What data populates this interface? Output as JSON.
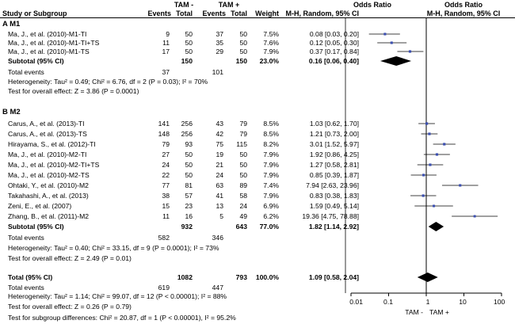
{
  "header": {
    "group1": "TAM -",
    "group2": "TAM +",
    "or_mid": "Odds Ratio",
    "or_right": "Odds Ratio",
    "study": "Study or Subgroup",
    "events1": "Events",
    "total1": "Total",
    "events2": "Events",
    "total2": "Total",
    "weight": "Weight",
    "method_mid": "M-H, Random, 95% CI",
    "method_right": "M-H, Random, 95% CI"
  },
  "chart_data": {
    "type": "forest",
    "axis": {
      "scale": "log",
      "ticks": [
        "0.01",
        "0.1",
        "1",
        "10",
        "100"
      ],
      "tick_values": [
        0.01,
        0.1,
        1,
        10,
        100
      ],
      "left_label": "TAM -",
      "right_label": "TAM +",
      "xlim": [
        0.01,
        100
      ]
    },
    "subgroups": [
      {
        "title": "A  M1",
        "studies": [
          {
            "name": "Ma, J., et al. (2010)-M1-TI",
            "e1": "9",
            "t1": "50",
            "e2": "37",
            "t2": "50",
            "weight": "7.5%",
            "or_text": "0.08 [0.03, 0.20]",
            "or": 0.08,
            "lo": 0.03,
            "hi": 0.2
          },
          {
            "name": "Ma, J., et al. (2010)-M1-TI+TS",
            "e1": "11",
            "t1": "50",
            "e2": "35",
            "t2": "50",
            "weight": "7.6%",
            "or_text": "0.12 [0.05, 0.30]",
            "or": 0.12,
            "lo": 0.05,
            "hi": 0.3
          },
          {
            "name": "Ma, J., et al. (2010)-M1-TS",
            "e1": "17",
            "t1": "50",
            "e2": "29",
            "t2": "50",
            "weight": "7.9%",
            "or_text": "0.37 [0.17, 0.84]",
            "or": 0.37,
            "lo": 0.17,
            "hi": 0.84
          }
        ],
        "subtotal": {
          "label": "Subtotal (95% CI)",
          "t1": "150",
          "t2": "150",
          "weight": "23.0%",
          "or_text": "0.16 [0.06, 0.40]",
          "or": 0.16,
          "lo": 0.06,
          "hi": 0.4
        },
        "total_events": {
          "label": "Total events",
          "e1": "37",
          "e2": "101"
        },
        "heterogeneity": "Heterogeneity: Tau² = 0.49; Chi² = 6.76, df = 2 (P = 0.03); I² = 70%",
        "overall": "Test for overall effect: Z = 3.86 (P = 0.0001)"
      },
      {
        "title": "B  M2",
        "studies": [
          {
            "name": "Carus, A., et al. (2013)-TI",
            "e1": "141",
            "t1": "256",
            "e2": "43",
            "t2": "79",
            "weight": "8.5%",
            "or_text": "1.03 [0.62, 1.70]",
            "or": 1.03,
            "lo": 0.62,
            "hi": 1.7
          },
          {
            "name": "Carus, A., et al. (2013)-TS",
            "e1": "148",
            "t1": "256",
            "e2": "42",
            "t2": "79",
            "weight": "8.5%",
            "or_text": "1.21 [0.73, 2.00]",
            "or": 1.21,
            "lo": 0.73,
            "hi": 2.0
          },
          {
            "name": "Hirayama, S., et al. (2012)-TI",
            "e1": "79",
            "t1": "93",
            "e2": "75",
            "t2": "115",
            "weight": "8.2%",
            "or_text": "3.01 [1.52, 5.97]",
            "or": 3.01,
            "lo": 1.52,
            "hi": 5.97
          },
          {
            "name": "Ma, J., et al. (2010)-M2-TI",
            "e1": "27",
            "t1": "50",
            "e2": "19",
            "t2": "50",
            "weight": "7.9%",
            "or_text": "1.92 [0.86, 4.25]",
            "or": 1.92,
            "lo": 0.86,
            "hi": 4.25
          },
          {
            "name": "Ma, J., et al. (2010)-M2-TI+TS",
            "e1": "24",
            "t1": "50",
            "e2": "21",
            "t2": "50",
            "weight": "7.9%",
            "or_text": "1.27 [0.58, 2.81]",
            "or": 1.27,
            "lo": 0.58,
            "hi": 2.81
          },
          {
            "name": "Ma, J., et al. (2010)-M2-TS",
            "e1": "22",
            "t1": "50",
            "e2": "24",
            "t2": "50",
            "weight": "7.9%",
            "or_text": "0.85 [0.39, 1.87]",
            "or": 0.85,
            "lo": 0.39,
            "hi": 1.87
          },
          {
            "name": "Ohtaki, Y., et al. (2010)-M2",
            "e1": "77",
            "t1": "81",
            "e2": "63",
            "t2": "89",
            "weight": "7.4%",
            "or_text": "7.94 [2.63, 23.96]",
            "or": 7.94,
            "lo": 2.63,
            "hi": 23.96
          },
          {
            "name": "Takahashi, A., et al. (2013)",
            "e1": "38",
            "t1": "57",
            "e2": "41",
            "t2": "58",
            "weight": "7.9%",
            "or_text": "0.83 [0.38, 1.83]",
            "or": 0.83,
            "lo": 0.38,
            "hi": 1.83
          },
          {
            "name": "Zeni, E., et al. (2007)",
            "e1": "15",
            "t1": "23",
            "e2": "13",
            "t2": "24",
            "weight": "6.9%",
            "or_text": "1.59 [0.49, 5.14]",
            "or": 1.59,
            "lo": 0.49,
            "hi": 5.14
          },
          {
            "name": "Zhang, B., et al. (2011)-M2",
            "e1": "11",
            "t1": "16",
            "e2": "5",
            "t2": "49",
            "weight": "6.2%",
            "or_text": "19.36 [4.75, 78.88]",
            "or": 19.36,
            "lo": 4.75,
            "hi": 78.88
          }
        ],
        "subtotal": {
          "label": "Subtotal (95% CI)",
          "t1": "932",
          "t2": "643",
          "weight": "77.0%",
          "or_text": "1.82 [1.14, 2.92]",
          "or": 1.82,
          "lo": 1.14,
          "hi": 2.92
        },
        "total_events": {
          "label": "Total events",
          "e1": "582",
          "e2": "346"
        },
        "heterogeneity": "Heterogeneity: Tau² = 0.40; Chi² = 33.15, df = 9 (P = 0.0001); I² = 73%",
        "overall": "Test for overall effect: Z = 2.49 (P = 0.01)"
      }
    ],
    "total": {
      "label": "Total (95% CI)",
      "t1": "1082",
      "t2": "793",
      "weight": "100.0%",
      "or_text": "1.09 [0.58, 2.04]",
      "or": 1.09,
      "lo": 0.58,
      "hi": 2.04
    },
    "total_events": {
      "label": "Total events",
      "e1": "619",
      "e2": "447"
    },
    "heterogeneity": "Heterogeneity: Tau² = 1.14; Chi² = 99.07, df = 12 (P < 0.00001); I² = 88%",
    "overall": "Test for overall effect: Z = 0.26 (P = 0.79)",
    "subgroup_test": "Test for subgroup differences: Chi² = 20.87, df = 1 (P < 0.00001), I² = 95.2%"
  },
  "colors": {
    "marker": "#3b4fb0",
    "line": "#000000"
  }
}
